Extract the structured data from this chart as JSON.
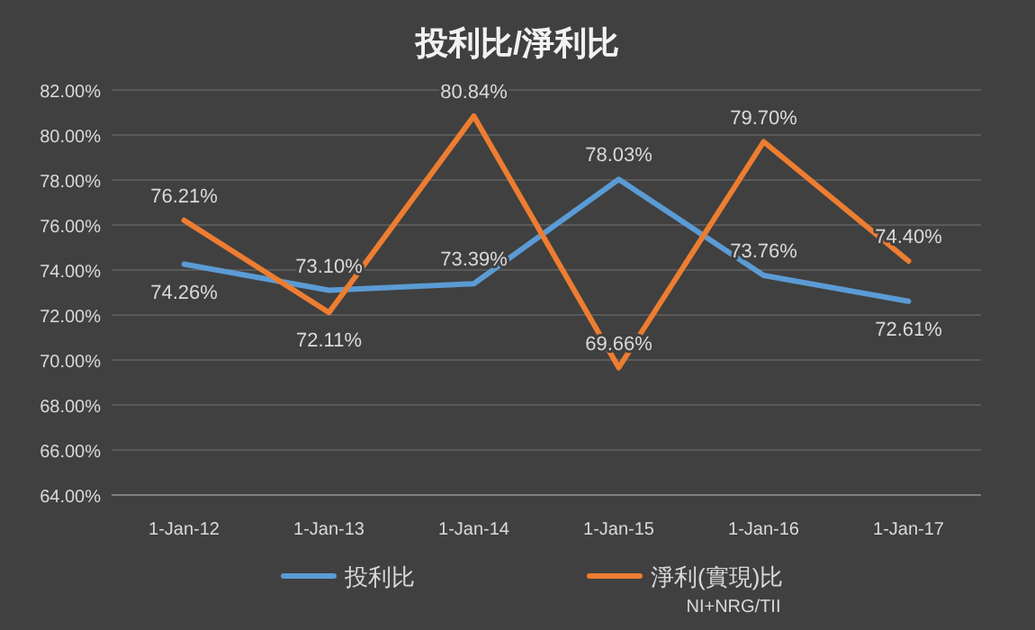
{
  "chart_data": {
    "type": "line",
    "title": "投利比/淨利比",
    "categories": [
      "1-Jan-12",
      "1-Jan-13",
      "1-Jan-14",
      "1-Jan-15",
      "1-Jan-16",
      "1-Jan-17"
    ],
    "series": [
      {
        "name": "投利比",
        "color": "#5b9bd5",
        "values": [
          74.26,
          73.1,
          73.39,
          78.03,
          73.76,
          72.61
        ],
        "value_labels": [
          "74.26%",
          "73.10%",
          "73.39%",
          "78.03%",
          "73.76%",
          "72.61%"
        ]
      },
      {
        "name": "淨利(實現)比",
        "color": "#ed7d31",
        "values": [
          76.21,
          72.11,
          80.84,
          69.66,
          79.7,
          74.4
        ],
        "value_labels": [
          "76.21%",
          "72.11%",
          "80.84%",
          "69.66%",
          "79.70%",
          "74.40%"
        ]
      }
    ],
    "ylim": [
      64,
      82
    ],
    "yticks": [
      {
        "value": 64,
        "label": "64.00%"
      },
      {
        "value": 66,
        "label": "66.00%"
      },
      {
        "value": 68,
        "label": "68.00%"
      },
      {
        "value": 70,
        "label": "70.00%"
      },
      {
        "value": 72,
        "label": "72.00%"
      },
      {
        "value": 74,
        "label": "74.00%"
      },
      {
        "value": 76,
        "label": "76.00%"
      },
      {
        "value": 78,
        "label": "78.00%"
      },
      {
        "value": 80,
        "label": "80.00%"
      },
      {
        "value": 82,
        "label": "82.00%"
      }
    ],
    "grid": "y",
    "legend": "bottom",
    "marker": "none",
    "line_style": "solid",
    "annotations": [
      "NI+NRG/TII"
    ]
  }
}
